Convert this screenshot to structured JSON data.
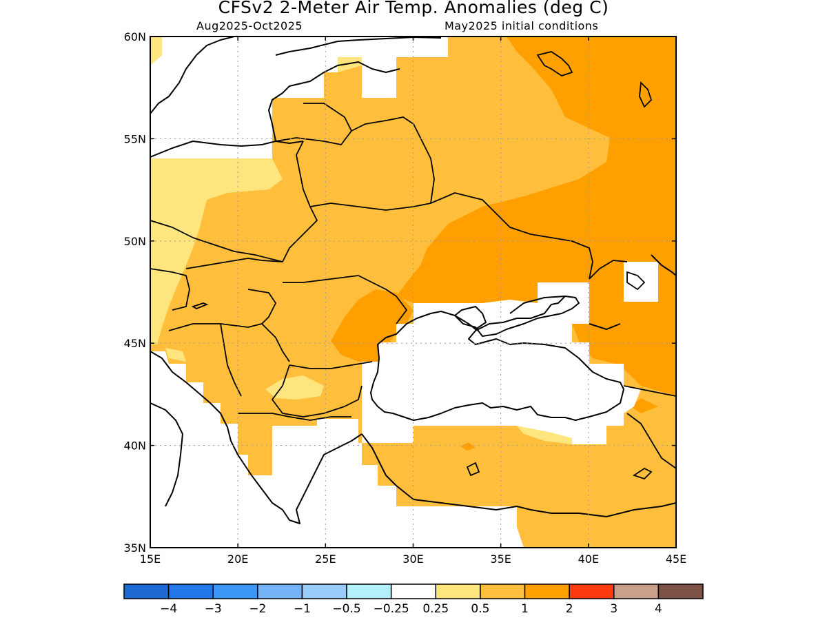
{
  "title": "CFSv2 2-Meter Air Temp. Anomalies (deg C)",
  "subtitle_left": "Aug2025-Oct2025",
  "subtitle_right": "May2025 initial conditions",
  "map": {
    "lon_range": [
      15,
      45
    ],
    "lat_range": [
      35,
      60
    ],
    "lon_ticks": [
      {
        "value": 15,
        "label": "15E"
      },
      {
        "value": 20,
        "label": "20E"
      },
      {
        "value": 25,
        "label": "25E"
      },
      {
        "value": 30,
        "label": "30E"
      },
      {
        "value": 35,
        "label": "35E"
      },
      {
        "value": 40,
        "label": "40E"
      },
      {
        "value": 45,
        "label": "45E"
      }
    ],
    "lat_ticks": [
      {
        "value": 60,
        "label": "60N"
      },
      {
        "value": 55,
        "label": "55N"
      },
      {
        "value": 50,
        "label": "50N"
      },
      {
        "value": 45,
        "label": "45N"
      },
      {
        "value": 40,
        "label": "40N"
      },
      {
        "value": 35,
        "label": "35N"
      }
    ],
    "grid": "dotted",
    "background_color": "#ffffff"
  },
  "colorbar": {
    "colors": [
      "#1f69d5",
      "#2277eb",
      "#3c96f5",
      "#75b5f7",
      "#99ccfa",
      "#b4f0fa",
      "#ffffff",
      "#ffe57d",
      "#ffbf3c",
      "#ffa000",
      "#ff3a0f",
      "#c8a08c",
      "#7d5246"
    ],
    "labels": [
      "−4",
      "−3",
      "−2",
      "−1",
      "−0.5",
      "−0.25",
      "0.25",
      "0.5",
      "1",
      "2",
      "3",
      "4"
    ]
  }
}
